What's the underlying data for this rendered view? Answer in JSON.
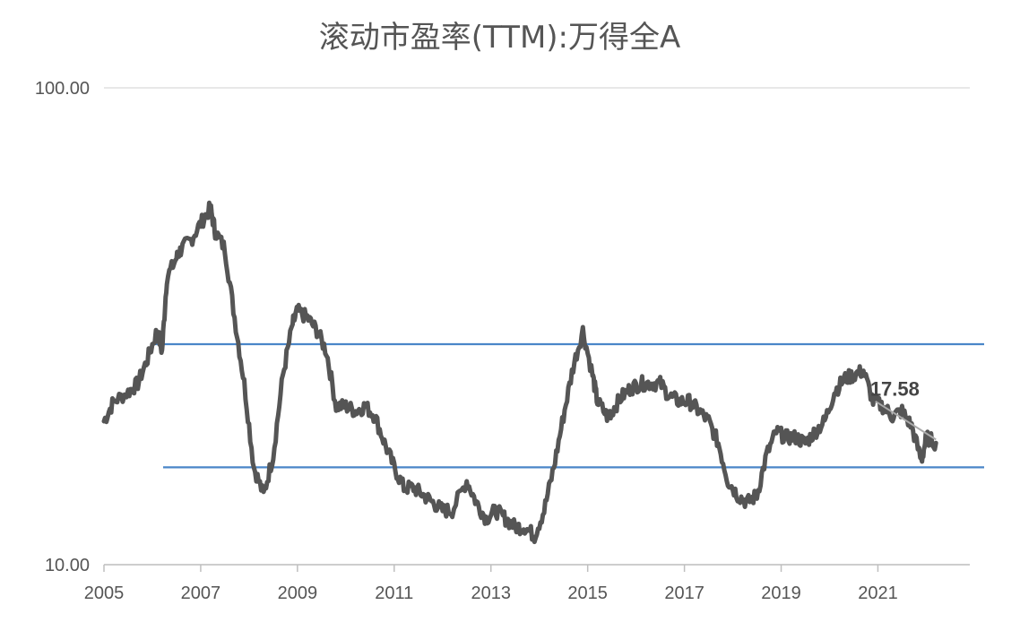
{
  "chart_data": {
    "type": "line",
    "title": "滚动市盈率(TTM):万得全A",
    "xlabel": "",
    "ylabel": "",
    "y_scale": "log",
    "ylim": [
      10,
      100
    ],
    "xlim": [
      2005,
      2022.9
    ],
    "y_ticks": [
      "10.00",
      "100.00"
    ],
    "x_ticks": [
      "2005",
      "2007",
      "2009",
      "2011",
      "2013",
      "2015",
      "2017",
      "2019",
      "2021"
    ],
    "grid": {
      "horizontal": true,
      "vertical": false
    },
    "legend": "none",
    "series": [
      {
        "color": "#555555",
        "x": [
          2005.0,
          2005.2,
          2005.5,
          2005.7,
          2005.9,
          2006.1,
          2006.2,
          2006.3,
          2006.5,
          2006.6,
          2006.8,
          2007.0,
          2007.2,
          2007.3,
          2007.5,
          2007.7,
          2007.9,
          2008.1,
          2008.3,
          2008.5,
          2008.7,
          2008.9,
          2009.0,
          2009.2,
          2009.4,
          2009.6,
          2009.8,
          2010.0,
          2010.2,
          2010.4,
          2010.6,
          2010.8,
          2011.0,
          2011.2,
          2011.4,
          2011.6,
          2011.8,
          2012.0,
          2012.2,
          2012.5,
          2012.7,
          2012.9,
          2013.1,
          2013.3,
          2013.5,
          2013.7,
          2013.9,
          2014.1,
          2014.3,
          2014.5,
          2014.7,
          2014.9,
          2015.1,
          2015.2,
          2015.4,
          2015.5,
          2015.7,
          2015.9,
          2016.1,
          2016.3,
          2016.5,
          2016.7,
          2016.9,
          2017.1,
          2017.3,
          2017.5,
          2017.7,
          2017.9,
          2018.1,
          2018.3,
          2018.5,
          2018.7,
          2018.9,
          2019.1,
          2019.3,
          2019.5,
          2019.7,
          2019.9,
          2020.1,
          2020.3,
          2020.5,
          2020.7,
          2020.9,
          2021.1,
          2021.3,
          2021.5,
          2021.7,
          2021.9,
          2022.0,
          2022.2
        ],
        "y": [
          20.0,
          22.0,
          23.0,
          24.0,
          27.0,
          31.0,
          28.0,
          40.0,
          44.0,
          46.0,
          48.0,
          52.0,
          56.0,
          50.0,
          46.0,
          33.0,
          24.0,
          16.0,
          14.0,
          17.0,
          25.0,
          32.0,
          34.0,
          33.0,
          31.0,
          28.0,
          21.5,
          21.5,
          21.0,
          21.5,
          20.5,
          18.0,
          16.0,
          14.5,
          14.5,
          14.0,
          13.5,
          13.0,
          13.0,
          15.0,
          13.5,
          12.5,
          13.0,
          12.5,
          12.0,
          12.0,
          11.5,
          13.0,
          16.0,
          20.5,
          26.0,
          31.0,
          25.0,
          22.0,
          20.5,
          21.0,
          22.5,
          23.5,
          24.0,
          24.0,
          24.0,
          22.5,
          22.0,
          22.0,
          21.0,
          20.0,
          18.0,
          15.0,
          14.0,
          13.5,
          14.0,
          17.0,
          19.0,
          18.5,
          18.5,
          18.0,
          19.0,
          20.0,
          23.0,
          24.5,
          25.0,
          25.5,
          22.0,
          21.5,
          20.5,
          21.0,
          19.5,
          16.5,
          18.5,
          18.0
        ]
      }
    ],
    "reference_lines": [
      {
        "value": 29.0,
        "color": "#4a86c8"
      },
      {
        "value": 16.0,
        "color": "#4a86c8"
      }
    ],
    "trend_segment": {
      "x": [
        2020.95,
        2022.2
      ],
      "y": [
        22.0,
        18.3
      ],
      "color": "#aaaaaa"
    },
    "annotations": [
      {
        "text": "17.58",
        "x": 2021.35,
        "y": 22.6
      }
    ]
  }
}
